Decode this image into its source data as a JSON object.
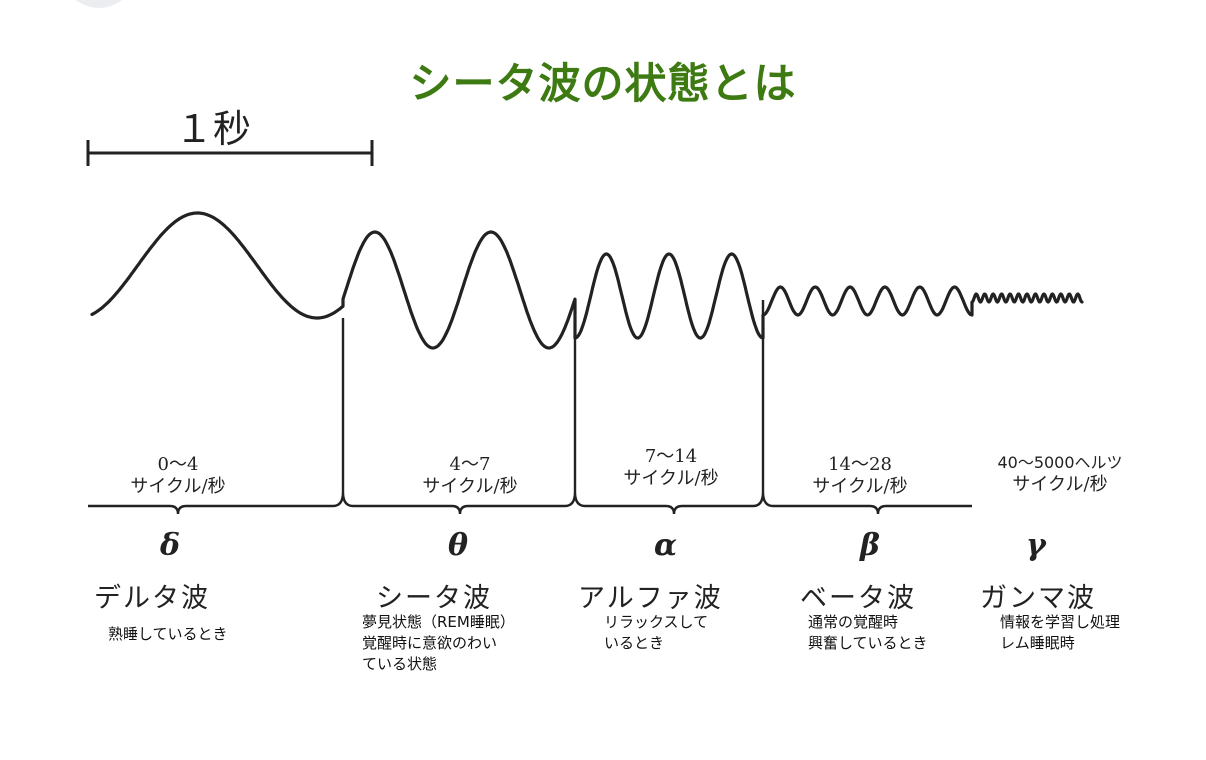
{
  "title": "シータ波の状態とは",
  "scale_label": "１秒",
  "bands": [
    {
      "id": "delta",
      "range": "0～4",
      "unit": "サイクル/秒",
      "greek": "δ",
      "name": "デルタ波",
      "desc": [
        "熟睡しているとき"
      ]
    },
    {
      "id": "theta",
      "range": "4～7",
      "unit": "サイクル/秒",
      "greek": "θ",
      "name": "シータ波",
      "desc": [
        "夢見状態（REM睡眠）",
        "覚醒時に意欲のわい",
        "ている状態"
      ]
    },
    {
      "id": "alpha",
      "range": "7～14",
      "unit": "サイクル/秒",
      "greek": "α",
      "name": "アルファ波",
      "desc": [
        "リラックスして",
        "いるとき"
      ]
    },
    {
      "id": "beta",
      "range": "14～28",
      "unit": "サイクル/秒",
      "greek": "β",
      "name": "ベータ波",
      "desc": [
        "通常の覚醒時",
        "興奮しているとき"
      ]
    },
    {
      "id": "gamma",
      "range": "40～5000ヘルツ",
      "unit": "サイクル/秒",
      "greek": "γ",
      "name": "ガンマ波",
      "desc": [
        "情報を学習し処理",
        "レム睡眠時"
      ]
    }
  ]
}
